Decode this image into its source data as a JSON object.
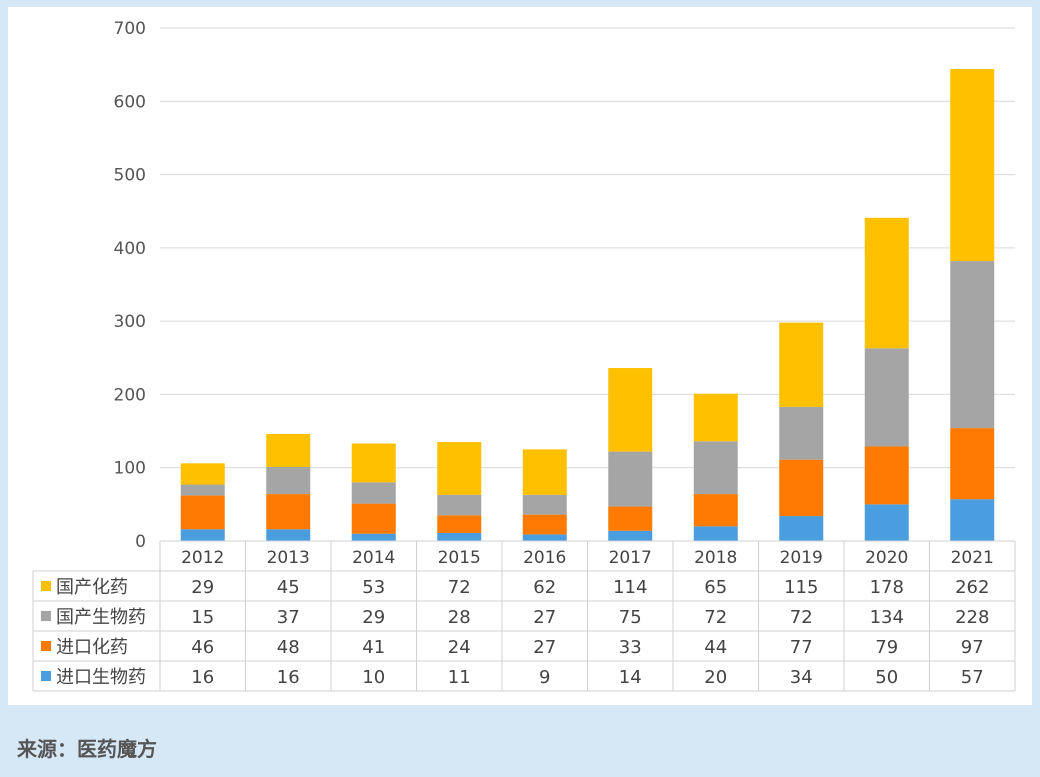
{
  "chart_data": {
    "type": "bar",
    "stacked": true,
    "categories": [
      "2012",
      "2013",
      "2014",
      "2015",
      "2016",
      "2017",
      "2018",
      "2019",
      "2020",
      "2021"
    ],
    "ylim": [
      0,
      700
    ],
    "yticks": [
      0,
      100,
      200,
      300,
      400,
      500,
      600,
      700
    ],
    "grid": true,
    "legend_placement": "data-table-left",
    "series": [
      {
        "name": "进口生物药",
        "color": "#4a9ddf",
        "values": [
          16,
          16,
          10,
          11,
          9,
          14,
          20,
          34,
          50,
          57
        ]
      },
      {
        "name": "进口化药",
        "color": "#ff7a00",
        "values": [
          46,
          48,
          41,
          24,
          27,
          33,
          44,
          77,
          79,
          97
        ]
      },
      {
        "name": "国产生物药",
        "color": "#a5a5a5",
        "values": [
          15,
          37,
          29,
          28,
          27,
          75,
          72,
          72,
          134,
          228
        ]
      },
      {
        "name": "国产化药",
        "color": "#ffc000",
        "values": [
          29,
          45,
          53,
          72,
          62,
          114,
          65,
          115,
          178,
          262
        ]
      }
    ],
    "table_row_order": [
      "国产化药",
      "国产生物药",
      "进口化药",
      "进口生物药"
    ]
  },
  "source": "来源：医药魔方"
}
